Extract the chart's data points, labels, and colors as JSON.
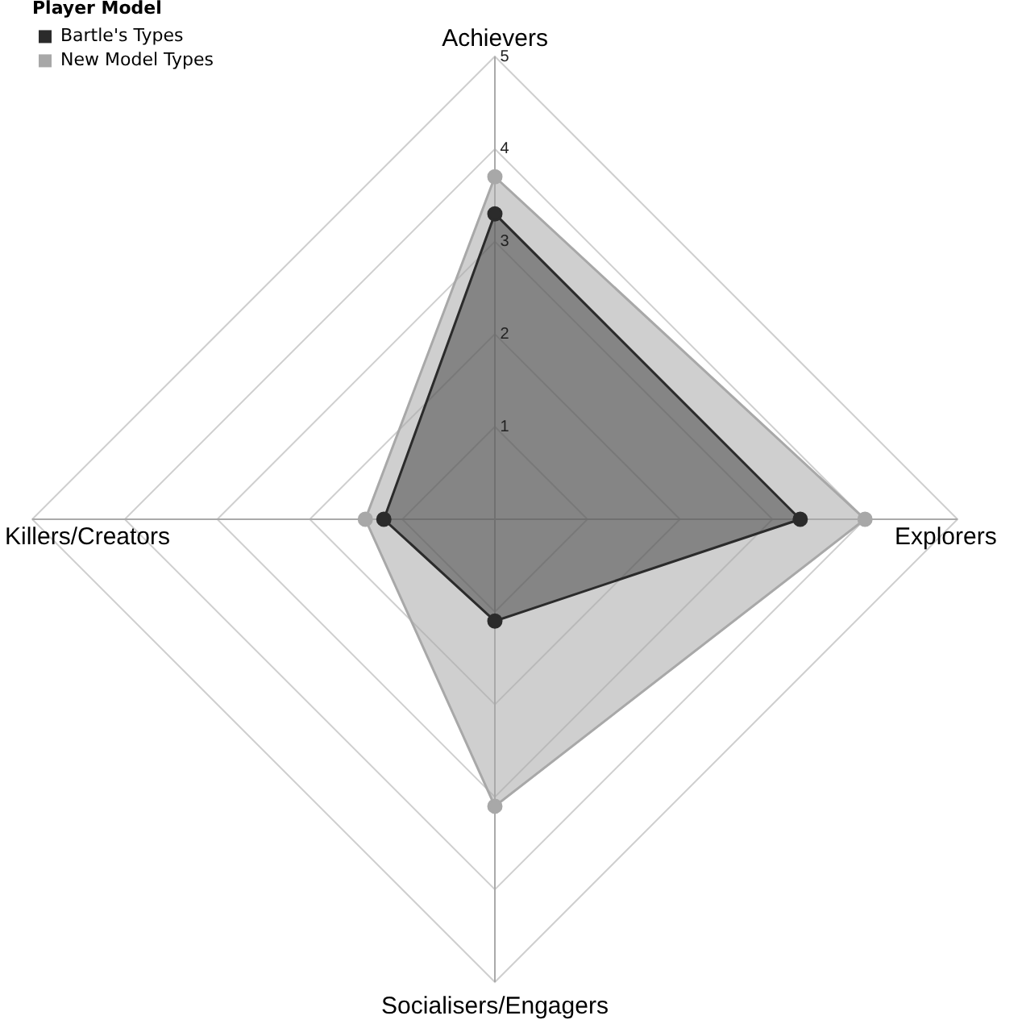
{
  "chart_data": {
    "type": "radar",
    "legend_title": "Player Model",
    "categories": [
      "Achievers",
      "Explorers",
      "Socialisers/Engagers",
      "Killers/Creators"
    ],
    "series": [
      {
        "name": "Bartle's Types",
        "color": "#2b2b2b",
        "values": [
          3.3,
          3.3,
          1.1,
          1.2
        ]
      },
      {
        "name": "New Model Types",
        "color": "#a8a8a8",
        "values": [
          3.7,
          4,
          3.1,
          1.4
        ]
      }
    ],
    "ylim": [
      0,
      5
    ],
    "yticks": [
      1,
      2,
      3,
      4,
      5
    ],
    "grid": true,
    "legend": "top left",
    "marker": "circle"
  }
}
